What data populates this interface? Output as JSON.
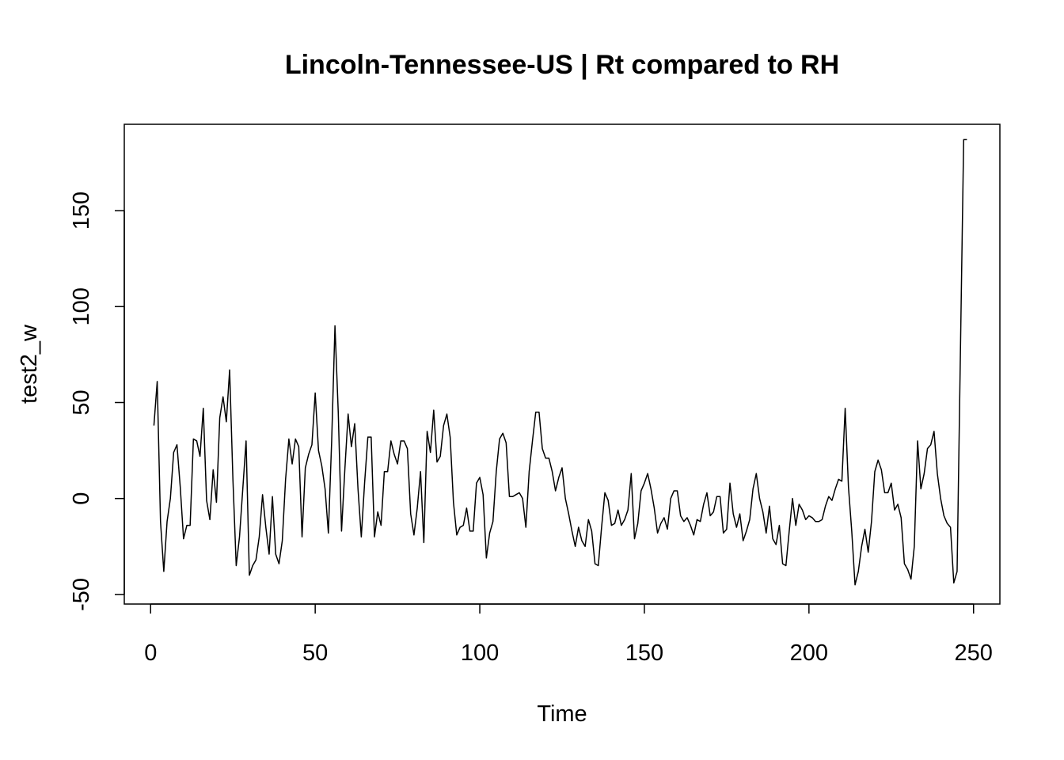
{
  "chart_data": {
    "type": "line",
    "title": "Lincoln-Tennessee-US | Rt compared to RH",
    "xlabel": "Time",
    "ylabel": "test2_w",
    "xlim": [
      -8,
      258
    ],
    "ylim": [
      -55,
      195
    ],
    "x_ticks": [
      0,
      50,
      100,
      150,
      200,
      250
    ],
    "y_ticks": [
      -50,
      0,
      50,
      100,
      150
    ],
    "grid": false,
    "legend": "none",
    "line_color": "#000000",
    "series": [
      {
        "x_start": 1,
        "values": [
          38,
          61,
          -12,
          -38,
          -12,
          0,
          24,
          28,
          6,
          -21,
          -14,
          -14,
          31,
          30,
          22,
          47,
          -1,
          -11,
          15,
          -2,
          42,
          53,
          40,
          67,
          10,
          -35,
          -20,
          5,
          30,
          -40,
          -35,
          -32,
          -20,
          2,
          -15,
          -29,
          1,
          -29,
          -34,
          -22,
          10,
          31,
          18,
          31,
          27,
          -20,
          16,
          23,
          28,
          55,
          25,
          17,
          5,
          -18,
          30,
          90,
          45,
          -17,
          15,
          44,
          27,
          39,
          5,
          -20,
          8,
          32,
          32,
          -20,
          -7,
          -14,
          14,
          14,
          30,
          23,
          18,
          30,
          30,
          26,
          -8,
          -19,
          -5,
          14,
          -23,
          35,
          24,
          46,
          19,
          22,
          38,
          44,
          32,
          -2,
          -19,
          -15,
          -14,
          -5,
          -17,
          -17,
          8,
          11,
          2,
          -31,
          -18,
          -12,
          14,
          31,
          34,
          29,
          1,
          1,
          2,
          3,
          0,
          -15,
          14,
          30,
          45,
          45,
          26,
          21,
          21,
          14,
          4,
          11,
          16,
          0,
          -8,
          -17,
          -25,
          -15,
          -22,
          -25,
          -11,
          -17,
          -34,
          -35,
          -15,
          3,
          -1,
          -14,
          -13,
          -6,
          -14,
          -11,
          -6,
          13,
          -21,
          -13,
          4,
          8,
          13,
          5,
          -5,
          -18,
          -13,
          -10,
          -16,
          0,
          4,
          4,
          -9,
          -12,
          -10,
          -14,
          -19,
          -11,
          -12,
          -3,
          3,
          -9,
          -7,
          1,
          1,
          -18,
          -16,
          8,
          -8,
          -15,
          -8,
          -22,
          -17,
          -11,
          5,
          13,
          0,
          -7,
          -18,
          -4,
          -21,
          -24,
          -14,
          -34,
          -35,
          -17,
          0,
          -14,
          -3,
          -6,
          -11,
          -9,
          -10,
          -12,
          -12,
          -11,
          -4,
          1,
          -1,
          5,
          10,
          9,
          47,
          6,
          -17,
          -45,
          -38,
          -25,
          -16,
          -28,
          -12,
          14,
          20,
          15,
          3,
          3,
          8,
          -6,
          -3,
          -10,
          -34,
          -37,
          -42,
          -25,
          30,
          5,
          13,
          26,
          28,
          35,
          13,
          0,
          -9,
          -13,
          -15,
          -44,
          -38,
          75,
          187,
          187
        ]
      }
    ]
  }
}
